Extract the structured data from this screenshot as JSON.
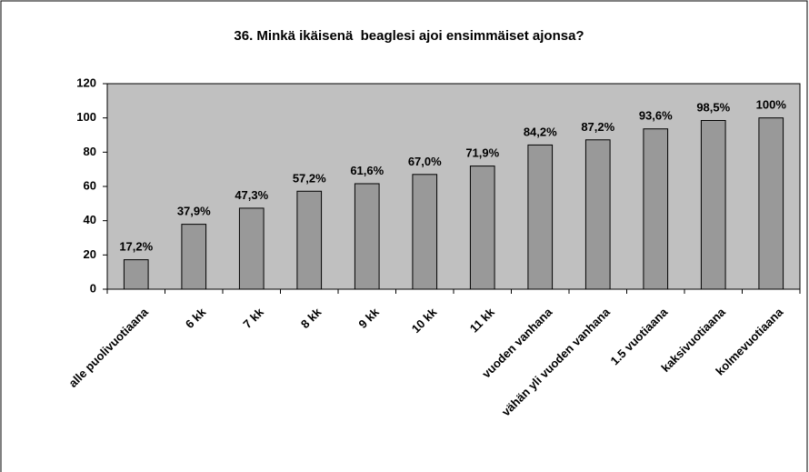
{
  "chart_data": {
    "type": "bar",
    "title": "36. Minkä ikäisenä  beaglesi ajoi ensimmäiset ajonsa?",
    "categories": [
      "alle puolivuotiaana",
      "6 kk",
      "7 kk",
      "8 kk",
      "9 kk",
      "10 kk",
      "11 kk",
      "vuoden vanhana",
      "vähän yli vuoden vanhana",
      "1.5 vuotiaana",
      "kaksivuotiaana",
      "kolmevuotiaana"
    ],
    "values": [
      17.2,
      37.9,
      47.3,
      57.2,
      61.6,
      67.0,
      71.9,
      84.2,
      87.2,
      93.6,
      98.5,
      100
    ],
    "value_labels": [
      "17,2%",
      "37,9%",
      "47,3%",
      "57,2%",
      "61,6%",
      "67,0%",
      "71,9%",
      "84,2%",
      "87,2%",
      "93,6%",
      "98,5%",
      "100%"
    ],
    "color": "#999999",
    "plot_background": "#c0c0c0",
    "ylim": [
      0,
      120
    ],
    "yticks": [
      0,
      20,
      40,
      60,
      80,
      100,
      120
    ]
  }
}
